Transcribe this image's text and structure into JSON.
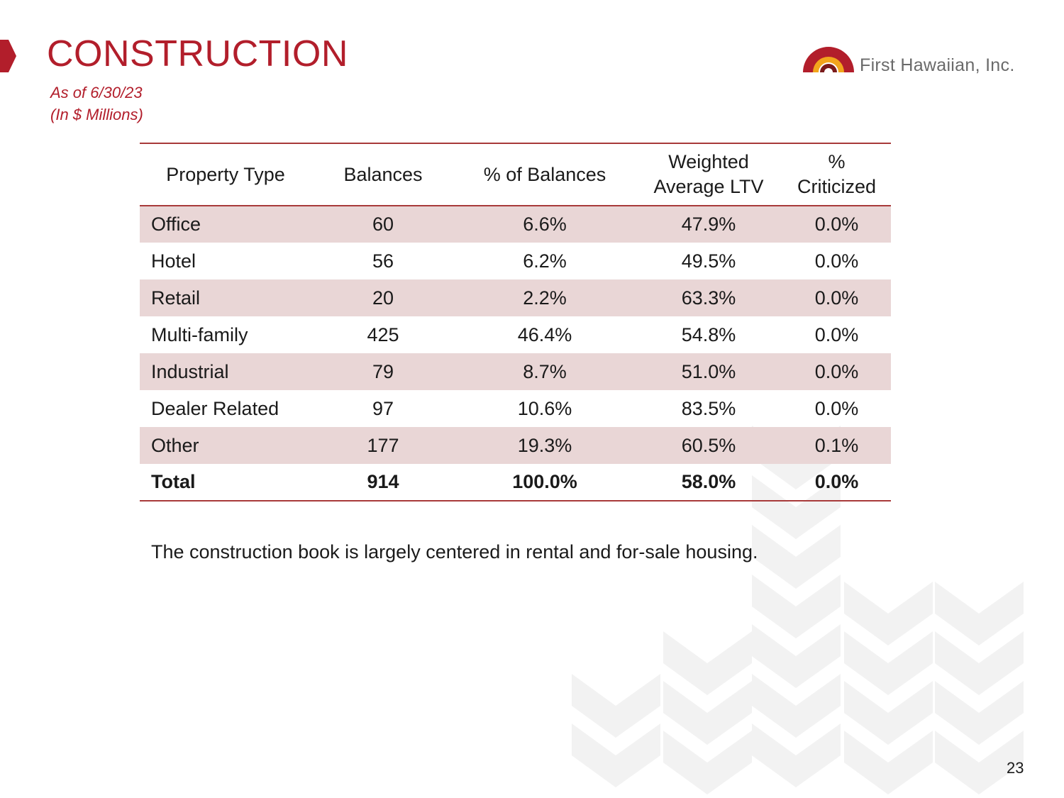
{
  "header": {
    "title": "CONSTRUCTION",
    "as_of": "As of 6/30/23",
    "units": "(In $ Millions)"
  },
  "logo": {
    "text": "First Hawaiian, Inc."
  },
  "table": {
    "columns": [
      "Property Type",
      "Balances",
      "% of Balances",
      "Weighted Average LTV",
      "% Criticized"
    ],
    "header_lines": {
      "property_type": "Property Type",
      "balances": "Balances",
      "pct_balances": "% of Balances",
      "ltv_line1": "Weighted",
      "ltv_line2": "Average LTV",
      "pct_criticized": "% Criticized"
    },
    "rows": [
      [
        "Office",
        "60",
        "6.6%",
        "47.9%",
        "0.0%"
      ],
      [
        "Hotel",
        "56",
        "6.2%",
        "49.5%",
        "0.0%"
      ],
      [
        "Retail",
        "20",
        "2.2%",
        "63.3%",
        "0.0%"
      ],
      [
        "Multi-family",
        "425",
        "46.4%",
        "54.8%",
        "0.0%"
      ],
      [
        "Industrial",
        "79",
        "8.7%",
        "51.0%",
        "0.0%"
      ],
      [
        "Dealer Related",
        "97",
        "10.6%",
        "83.5%",
        "0.0%"
      ],
      [
        "Other",
        "177",
        "19.3%",
        "60.5%",
        "0.1%"
      ]
    ],
    "total": [
      "Total",
      "914",
      "100.0%",
      "58.0%",
      "0.0%"
    ]
  },
  "note": "The construction book is largely centered in rental and for-sale housing.",
  "page_number": "23",
  "colors": {
    "brand_red": "#b21e2b",
    "rule_red": "#a83a3a",
    "row_shade": "#e9d6d6",
    "logo_orange": "#f2a51c",
    "logo_gray": "#6a6a6a"
  }
}
